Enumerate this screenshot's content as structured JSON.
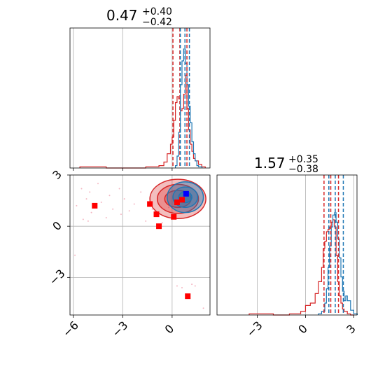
{
  "chart_data": {
    "type": "corner",
    "parameters": [
      "",
      ""
    ],
    "colors": {
      "run_a": "#d62728",
      "run_b": "#1f77b4",
      "marker_a": "#ff0000",
      "marker_b": "#0000ff"
    },
    "panels": [
      {
        "name": "param-0-marginal",
        "type": "histogram",
        "title": {
          "value": "0.47",
          "plus": "+0.40",
          "minus": "−0.42"
        },
        "xlim": [
          -6.2,
          2.3
        ],
        "x_ticks": [
          -6,
          -3,
          0
        ],
        "quantile_lines": {
          "run_a": [
            0.05,
            0.9,
            0.47
          ],
          "run_b": [
            0.5,
            1.05,
            0.78
          ]
        },
        "series": [
          {
            "name": "",
            "color": "#d62728",
            "x": [
              -5.6,
              -5.2,
              -4.8,
              -4.4,
              -4.0,
              -3.6,
              -3.2,
              -2.8,
              -2.4,
              -2.0,
              -1.6,
              -1.2,
              -0.8,
              -0.5,
              -0.3,
              -0.1,
              0.0,
              0.1,
              0.2,
              0.3,
              0.4,
              0.5,
              0.6,
              0.7,
              0.8,
              0.9,
              1.0,
              1.1,
              1.2,
              1.3,
              1.4,
              1.6,
              1.8
            ],
            "y": [
              0.01,
              0.01,
              0.01,
              0.01,
              0.0,
              0.0,
              0.0,
              0.0,
              0.0,
              0.0,
              0.01,
              0.01,
              0.02,
              0.05,
              0.12,
              0.2,
              0.26,
              0.4,
              0.55,
              0.6,
              0.58,
              0.48,
              0.5,
              0.62,
              0.78,
              0.5,
              0.32,
              0.2,
              0.14,
              0.08,
              0.06,
              0.03,
              0.01
            ]
          },
          {
            "name": "",
            "color": "#1f77b4",
            "x": [
              0.2,
              0.3,
              0.4,
              0.5,
              0.6,
              0.7,
              0.8,
              0.9,
              1.0,
              1.1,
              1.2,
              1.3,
              1.4,
              1.5,
              1.6
            ],
            "y": [
              0.02,
              0.1,
              0.3,
              0.7,
              0.9,
              1.0,
              0.88,
              0.7,
              0.52,
              0.38,
              0.22,
              0.12,
              0.06,
              0.02,
              0.01
            ]
          }
        ]
      },
      {
        "name": "param-1-marginal",
        "type": "histogram",
        "title": {
          "value": "1.57",
          "plus": "+0.35",
          "minus": "−0.38"
        },
        "xlim": [
          -5.5,
          3.2
        ],
        "x_ticks": [
          -3,
          0,
          3
        ],
        "quantile_lines": {
          "run_a": [
            1.15,
            2.05,
            1.57
          ],
          "run_b": [
            1.45,
            2.35,
            1.85
          ]
        },
        "series": [
          {
            "name": "",
            "color": "#d62728",
            "x": [
              -3.5,
              -2.0,
              -1.0,
              -0.3,
              0.0,
              0.3,
              0.6,
              0.8,
              1.0,
              1.1,
              1.2,
              1.3,
              1.4,
              1.5,
              1.6,
              1.7,
              1.8,
              1.9,
              2.0,
              2.1,
              2.2,
              2.3,
              2.4,
              2.6,
              2.8
            ],
            "y": [
              0.01,
              0.0,
              0.01,
              0.03,
              0.08,
              0.1,
              0.18,
              0.28,
              0.4,
              0.56,
              0.62,
              0.7,
              0.72,
              0.74,
              0.78,
              0.8,
              0.74,
              0.5,
              0.28,
              0.16,
              0.1,
              0.05,
              0.03,
              0.01,
              0.0
            ]
          },
          {
            "name": "",
            "color": "#1f77b4",
            "x": [
              0.8,
              1.0,
              1.2,
              1.3,
              1.4,
              1.5,
              1.6,
              1.7,
              1.8,
              1.9,
              2.0,
              2.1,
              2.2,
              2.3,
              2.4,
              2.5,
              2.6,
              2.8,
              3.0
            ],
            "y": [
              0.01,
              0.03,
              0.1,
              0.22,
              0.4,
              0.58,
              0.74,
              0.84,
              0.86,
              0.78,
              0.64,
              0.48,
              0.32,
              0.2,
              0.12,
              0.16,
              0.12,
              0.04,
              0.01
            ]
          }
        ]
      },
      {
        "name": "joint-2d",
        "type": "scatter-contour",
        "xlim": [
          -6.2,
          2.3
        ],
        "ylim": [
          -5.2,
          3.0
        ],
        "x_ticks": [
          -6,
          -3,
          0
        ],
        "y_ticks": [
          3,
          0,
          -3
        ],
        "contours": {
          "run_a": {
            "center": [
              0.35,
              1.6
            ],
            "radii": [
              [
                1.7,
                1.15
              ],
              [
                1.25,
                0.85
              ],
              [
                0.8,
                0.5
              ]
            ]
          },
          "run_b": {
            "center": [
              0.8,
              1.7
            ],
            "radii": [
              [
                1.1,
                0.9
              ],
              [
                0.75,
                0.6
              ],
              [
                0.4,
                0.32
              ]
            ]
          }
        },
        "markers": [
          {
            "x": -4.7,
            "y": 1.2,
            "color": "#ff0000"
          },
          {
            "x": -1.35,
            "y": 1.3,
            "color": "#ff0000"
          },
          {
            "x": -0.95,
            "y": 0.7,
            "color": "#ff0000"
          },
          {
            "x": -0.8,
            "y": 0.0,
            "color": "#ff0000"
          },
          {
            "x": 0.1,
            "y": 0.55,
            "color": "#ff0000"
          },
          {
            "x": 0.95,
            "y": -4.1,
            "color": "#ff0000"
          },
          {
            "x": 0.6,
            "y": 1.55,
            "color": "#ff0000"
          },
          {
            "x": 0.3,
            "y": 1.4,
            "color": "#ff0000"
          },
          {
            "x": 0.85,
            "y": 1.9,
            "color": "#0000ff"
          }
        ],
        "scatter": [
          [
            -5.8,
            1.2
          ],
          [
            -5.5,
            2.2
          ],
          [
            -5.4,
            0.4
          ],
          [
            -5.2,
            1.6
          ],
          [
            -5.0,
            2.0
          ],
          [
            -4.9,
            0.8
          ],
          [
            -4.5,
            2.5
          ],
          [
            -4.3,
            1.4
          ],
          [
            -4.0,
            0.5
          ],
          [
            -3.8,
            1.8
          ],
          [
            -3.6,
            1.0
          ],
          [
            -3.2,
            2.2
          ],
          [
            -2.9,
            1.6
          ],
          [
            -2.6,
            0.9
          ],
          [
            -2.3,
            1.3
          ],
          [
            -1.9,
            2.0
          ],
          [
            -1.6,
            0.3
          ],
          [
            -1.2,
            1.0
          ],
          [
            -0.6,
            0.2
          ],
          [
            -0.2,
            1.1
          ],
          [
            0.3,
            -3.5
          ],
          [
            0.6,
            -3.6
          ],
          [
            1.2,
            -3.4
          ],
          [
            1.4,
            -3.5
          ],
          [
            1.9,
            -4.8
          ],
          [
            -5.9,
            -1.7
          ],
          [
            -5.1,
            0.3
          ],
          [
            -3.1,
            0.7
          ]
        ]
      }
    ]
  }
}
